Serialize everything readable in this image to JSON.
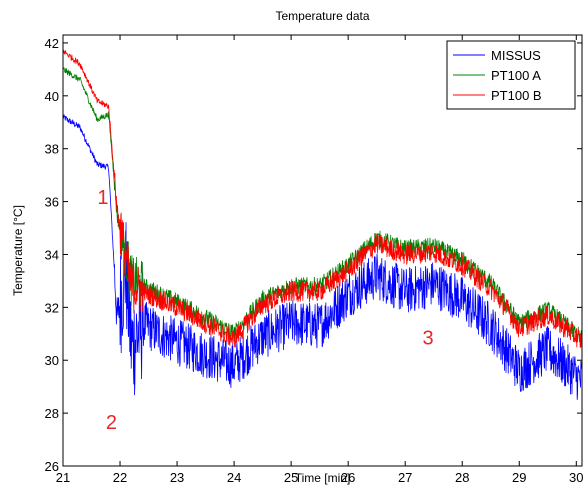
{
  "chart_data": {
    "type": "line",
    "title": "Temperature data",
    "xlabel": "Time [min]",
    "ylabel": "Temperature [°C]",
    "xlim": [
      21,
      30.1
    ],
    "ylim": [
      26,
      42.3
    ],
    "x_ticks": [
      21,
      22,
      23,
      24,
      25,
      26,
      27,
      28,
      29,
      30
    ],
    "y_ticks": [
      26,
      28,
      30,
      32,
      34,
      36,
      38,
      40,
      42
    ],
    "grid": false,
    "legend_position": "top-right",
    "series": [
      {
        "name": "MISSUS",
        "color": "#0000ff",
        "x": [
          21,
          21.3,
          21.6,
          21.8,
          21.95,
          22.1,
          22.2,
          22.4,
          22.7,
          23,
          23.5,
          24,
          24.5,
          25,
          25.5,
          26,
          26.5,
          27,
          27.5,
          28,
          28.5,
          28.8,
          29,
          29.5,
          30,
          30.1
        ],
        "y": [
          39.2,
          38.8,
          37.4,
          37.3,
          31.5,
          33.5,
          30.5,
          31.4,
          31.0,
          30.7,
          30.2,
          29.8,
          30.9,
          31.4,
          31.3,
          32.5,
          33.2,
          32.6,
          32.9,
          32.3,
          31.3,
          30.3,
          29.6,
          30.4,
          29.4,
          29.2
        ]
      },
      {
        "name": "PT100 A",
        "color": "#008000",
        "x": [
          21,
          21.3,
          21.6,
          21.8,
          21.95,
          22.1,
          22.2,
          22.4,
          22.7,
          23,
          23.5,
          24,
          24.5,
          25,
          25.5,
          26,
          26.5,
          27,
          27.5,
          28,
          28.5,
          28.8,
          29,
          29.5,
          30,
          30.1
        ],
        "y": [
          41.0,
          40.6,
          39.1,
          39.3,
          35.5,
          34.0,
          33.0,
          32.8,
          32.5,
          32.2,
          31.6,
          31.0,
          32.3,
          32.8,
          32.8,
          33.6,
          34.6,
          34.2,
          34.3,
          33.8,
          32.9,
          32.0,
          31.4,
          31.9,
          31.0,
          30.8
        ]
      },
      {
        "name": "PT100 B",
        "color": "#ff0000",
        "x": [
          21,
          21.3,
          21.6,
          21.8,
          21.95,
          22.1,
          22.2,
          22.4,
          22.7,
          23,
          23.5,
          24,
          24.5,
          25,
          25.5,
          26,
          26.5,
          27,
          27.5,
          28,
          28.5,
          28.8,
          29,
          29.5,
          30,
          30.1
        ],
        "y": [
          41.7,
          41.2,
          39.8,
          39.6,
          35.7,
          33.8,
          32.8,
          32.6,
          32.3,
          32.0,
          31.4,
          30.8,
          32.1,
          32.6,
          32.6,
          33.4,
          34.4,
          34.0,
          34.1,
          33.6,
          32.7,
          31.9,
          31.2,
          31.7,
          30.9,
          30.7
        ]
      }
    ],
    "annotations": [
      {
        "text": "1",
        "x": 21.7,
        "y": 35.9,
        "color": "#e8262b"
      },
      {
        "text": "2",
        "x": 21.85,
        "y": 27.4,
        "color": "#e8262b"
      },
      {
        "text": "3",
        "x": 27.4,
        "y": 30.6,
        "color": "#e8262b"
      }
    ]
  }
}
